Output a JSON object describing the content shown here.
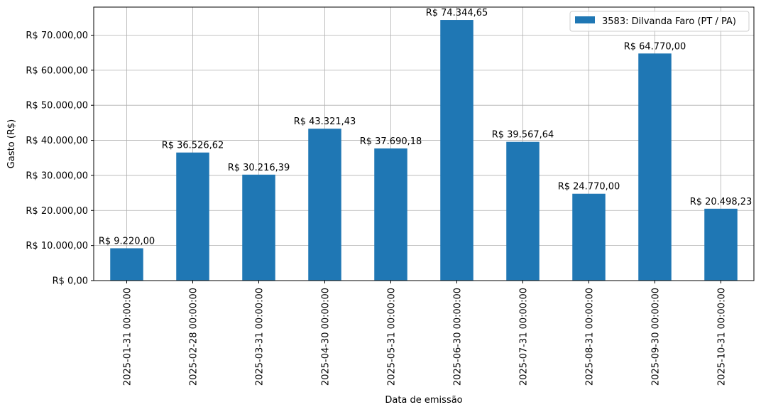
{
  "chart_data": {
    "type": "bar",
    "categories": [
      "2025-01-31 00:00:00",
      "2025-02-28 00:00:00",
      "2025-03-31 00:00:00",
      "2025-04-30 00:00:00",
      "2025-05-31 00:00:00",
      "2025-06-30 00:00:00",
      "2025-07-31 00:00:00",
      "2025-08-31 00:00:00",
      "2025-09-30 00:00:00",
      "2025-10-31 00:00:00"
    ],
    "series": [
      {
        "name": "3583: Dilvanda Faro (PT / PA)",
        "color": "#1f77b4",
        "values": [
          9220.0,
          36526.62,
          30216.39,
          43321.43,
          37690.18,
          74344.65,
          39567.64,
          24770.0,
          64770.0,
          20498.23
        ],
        "labels": [
          "R$ 9.220,00",
          "R$ 36.526,62",
          "R$ 30.216,39",
          "R$ 43.321,43",
          "R$ 37.690,18",
          "R$ 74.344,65",
          "R$ 39.567,64",
          "R$ 24.770,00",
          "R$ 64.770,00",
          "R$ 20.498,23"
        ]
      }
    ],
    "xlabel": "Data de emissão",
    "ylabel": "Gasto (R$)",
    "ylim": [
      0,
      78000
    ],
    "yticks": [
      0,
      10000,
      20000,
      30000,
      40000,
      50000,
      60000,
      70000
    ],
    "ytick_labels": [
      "R$ 0,00",
      "R$ 10.000,00",
      "R$ 20.000,00",
      "R$ 30.000,00",
      "R$ 40.000,00",
      "R$ 50.000,00",
      "R$ 60.000,00",
      "R$ 70.000,00"
    ],
    "grid": true,
    "legend_position": "top-right"
  }
}
